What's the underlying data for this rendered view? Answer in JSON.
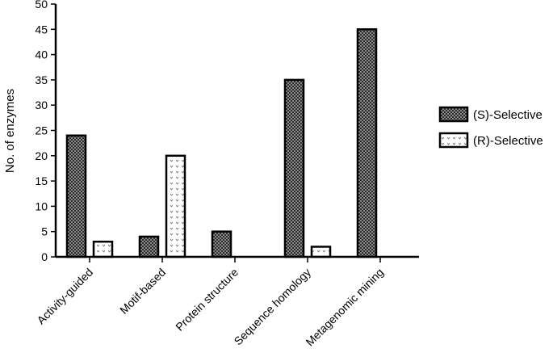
{
  "chart_data": {
    "type": "bar",
    "title": "",
    "xlabel": "",
    "ylabel": "No. of enzymes",
    "ylim": [
      0,
      50
    ],
    "yticks": [
      0,
      5,
      10,
      15,
      20,
      25,
      30,
      35,
      40,
      45,
      50
    ],
    "categories": [
      "Activity-guided",
      "Motif-based",
      "Protein structure",
      "Sequence homology",
      "Metagenomic mining"
    ],
    "series": [
      {
        "name": "(S)-Selective",
        "values": [
          24,
          4,
          5,
          35,
          45
        ],
        "pattern": "dense-dots",
        "color": "#555555"
      },
      {
        "name": "(R)-Selective",
        "values": [
          3,
          20,
          0,
          2,
          0
        ],
        "pattern": "sparse-checks",
        "color": "#ffffff"
      }
    ],
    "grid": false,
    "legend_position": "right"
  }
}
